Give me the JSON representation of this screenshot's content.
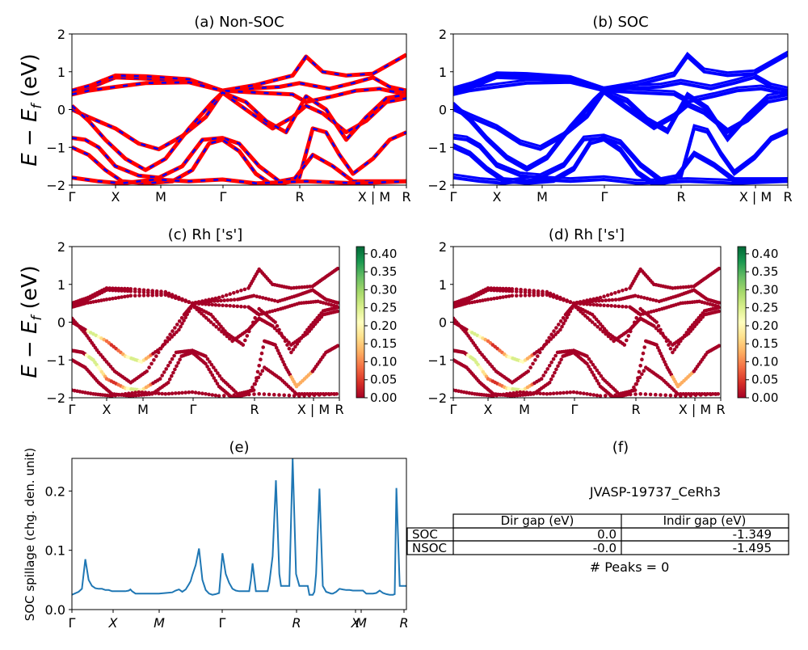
{
  "figure": {
    "panels": {
      "a": {
        "title": "(a) Non-SOC"
      },
      "b": {
        "title": "(b) SOC"
      },
      "c": {
        "title": "(c)  Rh ['s']"
      },
      "d": {
        "title": "(d) Rh ['s']"
      },
      "e": {
        "title": "(e)"
      },
      "f": {
        "title": "(f)"
      }
    },
    "band_ylabel": "E − E_f (eV)",
    "spillage_ylabel": "SOC spillage (chg. den. unit)",
    "info": {
      "material": "JVASP-19737_CeRh3",
      "table_headers": [
        "",
        "Dir gap (eV)",
        "Indir gap (eV)"
      ],
      "table_rows": [
        {
          "label": "SOC",
          "dir": "0.0",
          "indir": "-1.349"
        },
        {
          "label": "NSOC",
          "dir": "-0.0",
          "indir": "-1.495"
        }
      ],
      "peaks": "# Peaks = 0"
    },
    "colors": {
      "nsoc_band": "#ff0000",
      "nsoc_dash": "#0000ff",
      "soc_band": "#0000ff",
      "spillage_line": "#1f77b4",
      "colormap": [
        "#a50026",
        "#d73027",
        "#f46d43",
        "#fdae61",
        "#fee08b",
        "#ffffbf",
        "#d9ef8b",
        "#a6d96a",
        "#66bd63",
        "#1a9850",
        "#006837"
      ]
    }
  },
  "chart_data": [
    {
      "type": "line",
      "title": "(a) Non-SOC",
      "ylabel": "E − E_f (eV)",
      "ylim": [
        -2,
        2
      ],
      "yticks": [
        "−2",
        "−1",
        "0",
        "1",
        "2"
      ],
      "xticks": [
        "Γ",
        "X",
        "M",
        "Γ",
        "R",
        "X | M",
        "R"
      ],
      "series": [
        {
          "values": [
            0.5,
            0.6,
            0.5,
            0.5,
            0.6,
            0.55,
            0.5,
            0.4,
            0.45,
            0.5,
            0.5
          ]
        }
      ]
    },
    {
      "type": "line",
      "title": "(b) SOC",
      "ylim": [
        -2,
        2
      ],
      "yticks": [
        "−2",
        "−1",
        "0",
        "1",
        "2"
      ],
      "xticks": [
        "Γ",
        "X",
        "M",
        "Γ",
        "R",
        "X | M",
        "R"
      ],
      "series": [
        {
          "values": [
            0.5,
            0.6,
            0.5,
            0.5,
            0.6,
            0.55,
            0.5,
            0.4,
            0.45,
            0.5,
            0.5
          ]
        }
      ]
    },
    {
      "type": "scatter",
      "title": "(c)  Rh ['s']",
      "ylabel": "E − E_f (eV)",
      "ylim": [
        -2,
        2
      ],
      "yticks": [
        "−2",
        "−1",
        "0",
        "1",
        "2"
      ],
      "xticks": [
        "Γ",
        "X",
        "M",
        "Γ",
        "R",
        "X | M",
        "R"
      ],
      "colorbar_range": [
        0,
        0.42
      ],
      "colorbar_ticks": [
        "0.00",
        "0.05",
        "0.10",
        "0.15",
        "0.20",
        "0.25",
        "0.30",
        "0.35",
        "0.40"
      ]
    },
    {
      "type": "scatter",
      "title": "(d) Rh ['s']",
      "ylim": [
        -2,
        2
      ],
      "yticks": [
        "−2",
        "−1",
        "0",
        "1",
        "2"
      ],
      "xticks": [
        "Γ",
        "X",
        "M",
        "Γ",
        "R",
        "X | M",
        "R"
      ],
      "colorbar_range": [
        0,
        0.42
      ],
      "colorbar_ticks": [
        "0.00",
        "0.05",
        "0.10",
        "0.15",
        "0.20",
        "0.25",
        "0.30",
        "0.35",
        "0.40"
      ]
    },
    {
      "type": "line",
      "title": "(e)",
      "ylabel": "SOC spillage (chg. den. unit)",
      "xlim": [
        0,
        100
      ],
      "ylim": [
        0,
        0.255
      ],
      "yticks": [
        "0.0",
        "0.1",
        "0.2"
      ],
      "xticks": [
        "Γ",
        "X",
        "M",
        "Γ",
        "R",
        "X",
        "M",
        "R"
      ],
      "x": [
        0,
        2,
        3,
        3.5,
        4,
        5,
        6,
        7,
        8,
        9,
        10,
        11,
        12,
        13,
        14,
        15,
        16,
        17,
        17.5,
        18,
        19,
        20,
        22,
        24,
        26,
        28,
        30,
        31,
        32,
        33,
        34,
        35,
        35.5,
        36,
        37,
        38,
        39,
        40,
        41,
        42,
        43,
        44,
        44.5,
        45,
        46,
        47,
        48,
        49,
        50,
        51,
        52,
        53,
        53.5,
        54,
        55,
        56,
        57,
        58,
        58.5,
        59,
        60,
        61,
        62,
        62.5,
        63,
        64,
        65,
        66,
        67,
        68,
        69,
        70,
        70.5,
        71,
        72,
        72.5,
        73,
        74,
        75,
        76,
        77,
        77.5,
        78,
        79,
        80,
        81,
        82,
        83,
        84,
        85,
        86,
        87,
        88,
        88.5,
        89,
        90,
        91,
        92,
        93,
        94,
        95,
        96,
        96.5,
        97,
        98,
        99,
        100
      ],
      "y": [
        0.025,
        0.03,
        0.035,
        0.06,
        0.085,
        0.05,
        0.04,
        0.036,
        0.035,
        0.035,
        0.033,
        0.033,
        0.031,
        0.031,
        0.031,
        0.031,
        0.031,
        0.032,
        0.034,
        0.031,
        0.027,
        0.027,
        0.027,
        0.027,
        0.027,
        0.028,
        0.029,
        0.032,
        0.034,
        0.03,
        0.034,
        0.043,
        0.048,
        0.058,
        0.075,
        0.103,
        0.05,
        0.033,
        0.027,
        0.025,
        0.026,
        0.028,
        0.06,
        0.095,
        0.06,
        0.045,
        0.035,
        0.032,
        0.031,
        0.031,
        0.031,
        0.031,
        0.05,
        0.078,
        0.031,
        0.031,
        0.031,
        0.031,
        0.031,
        0.045,
        0.09,
        0.218,
        0.06,
        0.04,
        0.04,
        0.04,
        0.04,
        0.255,
        0.06,
        0.04,
        0.04,
        0.04,
        0.04,
        0.025,
        0.025,
        0.03,
        0.06,
        0.204,
        0.04,
        0.03,
        0.028,
        0.027,
        0.027,
        0.03,
        0.035,
        0.034,
        0.033,
        0.033,
        0.032,
        0.032,
        0.032,
        0.032,
        0.027,
        0.027,
        0.027,
        0.027,
        0.028,
        0.032,
        0.028,
        0.026,
        0.025,
        0.025,
        0.026,
        0.205,
        0.04,
        0.04,
        0.04
      ]
    }
  ]
}
